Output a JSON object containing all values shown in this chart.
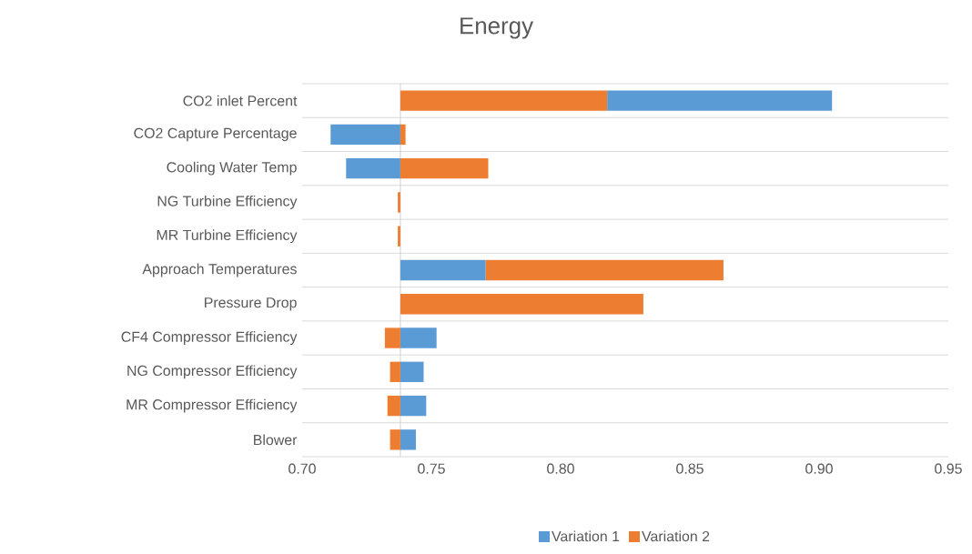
{
  "chart_data": {
    "type": "bar",
    "orientation": "horizontal",
    "title": "Energy",
    "categories": [
      "CO2 inlet Percent",
      "CO2 Capture Percentage",
      "Cooling Water Temp",
      "NG Turbine Efficiency",
      "MR Turbine Efficiency",
      "Approach Temperatures",
      "Pressure Drop",
      "CF4 Compressor Efficiency",
      "NG Compressor Efficiency",
      "MR Compressor Efficiency",
      "Blower"
    ],
    "series": [
      {
        "name": "Variation 1",
        "color": "#5b9bd5",
        "base": [
          0.818,
          0.738,
          0.738,
          null,
          null,
          0.738,
          null,
          0.738,
          0.738,
          0.738,
          0.738
        ],
        "values": [
          0.087,
          -0.027,
          -0.021,
          null,
          null,
          0.033,
          null,
          0.014,
          0.009,
          0.01,
          0.006
        ]
      },
      {
        "name": "Variation 2",
        "color": "#ed7d31",
        "base": [
          0.738,
          0.738,
          0.738,
          0.738,
          0.738,
          0.771,
          0.738,
          0.738,
          0.738,
          0.738,
          0.738
        ],
        "values": [
          0.08,
          0.002,
          0.034,
          -0.001,
          -0.001,
          0.092,
          0.094,
          -0.006,
          -0.004,
          -0.005,
          -0.004
        ]
      }
    ],
    "xlim": [
      0.7,
      0.95
    ],
    "xticks": [
      {
        "value": 0.7,
        "label": "0.70"
      },
      {
        "value": 0.75,
        "label": "0.75"
      },
      {
        "value": 0.8,
        "label": "0.80"
      },
      {
        "value": 0.85,
        "label": "0.85"
      },
      {
        "value": 0.9,
        "label": "0.90"
      },
      {
        "value": 0.95,
        "label": "0.95"
      }
    ],
    "ref_lines": [
      {
        "axis": "x",
        "value": 0.738,
        "color": "#d0d0d0"
      }
    ],
    "grid": "y",
    "legend": "bottom"
  }
}
